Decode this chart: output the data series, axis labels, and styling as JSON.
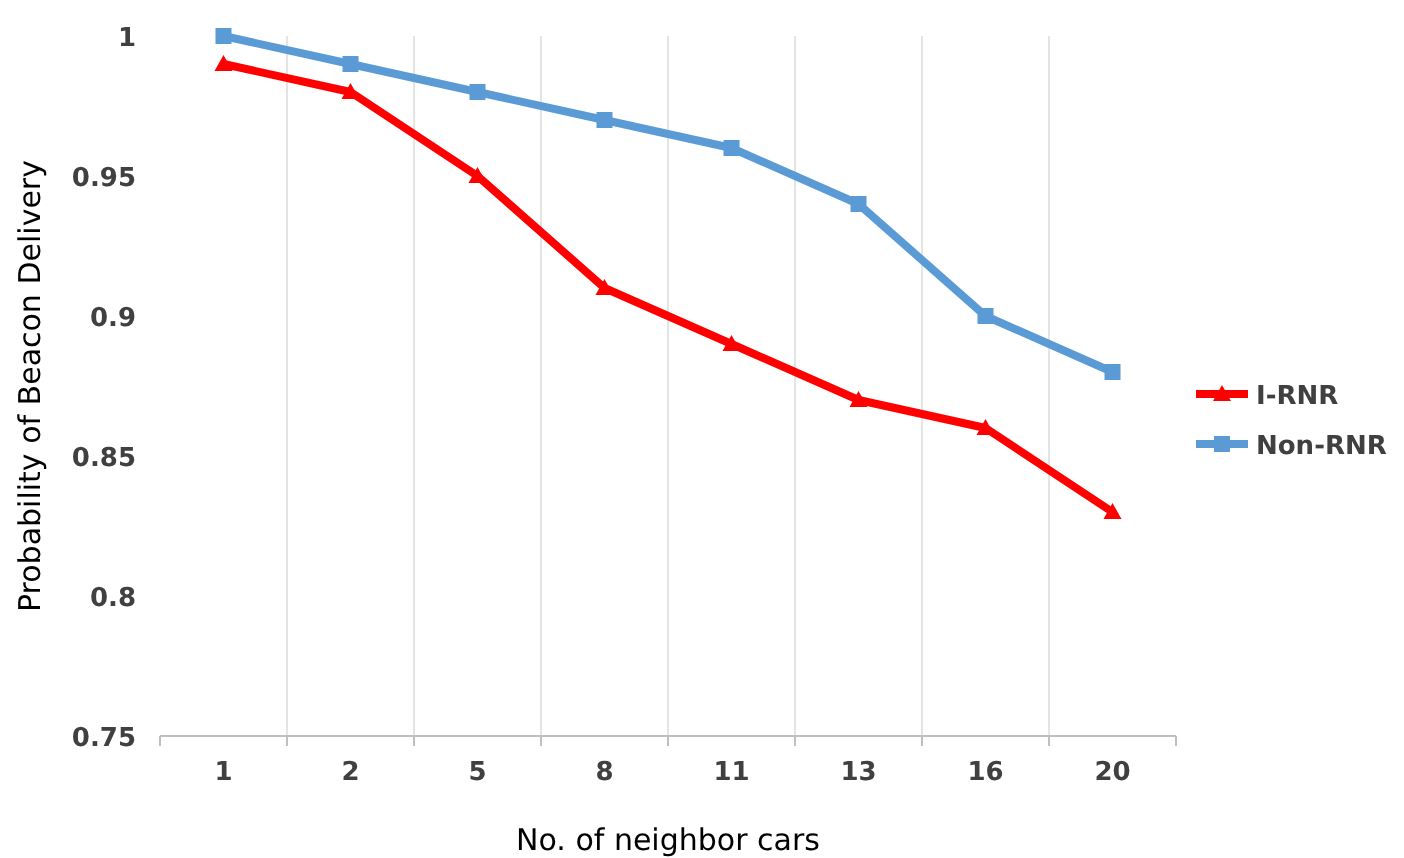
{
  "chart_data": {
    "type": "line",
    "xlabel": "No. of neighbor cars",
    "ylabel": "Probability of Beacon Delivery",
    "categories": [
      "1",
      "2",
      "5",
      "8",
      "11",
      "13",
      "16",
      "20"
    ],
    "series": [
      {
        "name": "I-RNR",
        "color": "#ff0000",
        "marker": "triangle",
        "values": [
          0.99,
          0.98,
          0.95,
          0.91,
          0.89,
          0.87,
          0.86,
          0.83
        ]
      },
      {
        "name": "Non-RNR",
        "color": "#5b9bd5",
        "marker": "square",
        "values": [
          1,
          0.99,
          0.98,
          0.97,
          0.96,
          0.94,
          0.9,
          0.88
        ]
      }
    ],
    "ylim": [
      0.75,
      1
    ],
    "yticks": [
      0.75,
      0.8,
      0.85,
      0.9,
      0.95,
      1
    ],
    "grid": "x",
    "legend": "right",
    "line_style": "solid"
  }
}
